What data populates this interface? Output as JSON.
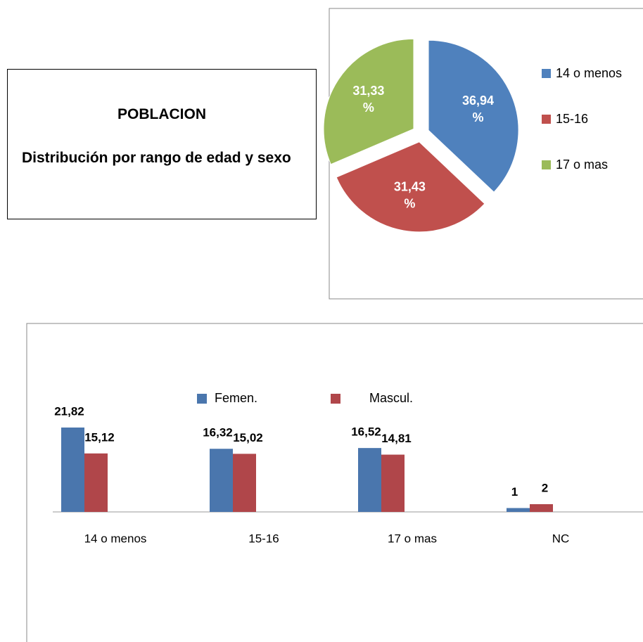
{
  "textbox": {
    "title": "POBLACION",
    "body": "Distribución por rango de edad y sexo"
  },
  "pie_chart": {
    "type": "pie",
    "categories": [
      "14 o menos",
      "15-16",
      "17 o mas"
    ],
    "values": [
      36.94,
      31.43,
      31.33
    ],
    "value_labels": [
      "36,94 %",
      "31,43 %",
      "31,33 %"
    ],
    "colors": [
      "#4f81bd",
      "#c0504d",
      "#9bbb59"
    ],
    "legend": "right"
  },
  "chart_data": {
    "type": "bar",
    "categories": [
      "14 o menos",
      "15-16",
      "17 o mas",
      "NC"
    ],
    "series": [
      {
        "name": "Femen.",
        "color": "#4a76ad",
        "values": [
          21.82,
          16.32,
          16.52,
          1
        ],
        "value_labels": [
          "21,82",
          "16,32",
          "16,52",
          "1"
        ]
      },
      {
        "name": "Mascul.",
        "color": "#b0464a",
        "values": [
          15.12,
          15.02,
          14.81,
          2
        ],
        "value_labels": [
          "15,12",
          "15,02",
          "14,81",
          "2"
        ]
      }
    ],
    "legend": "top"
  }
}
